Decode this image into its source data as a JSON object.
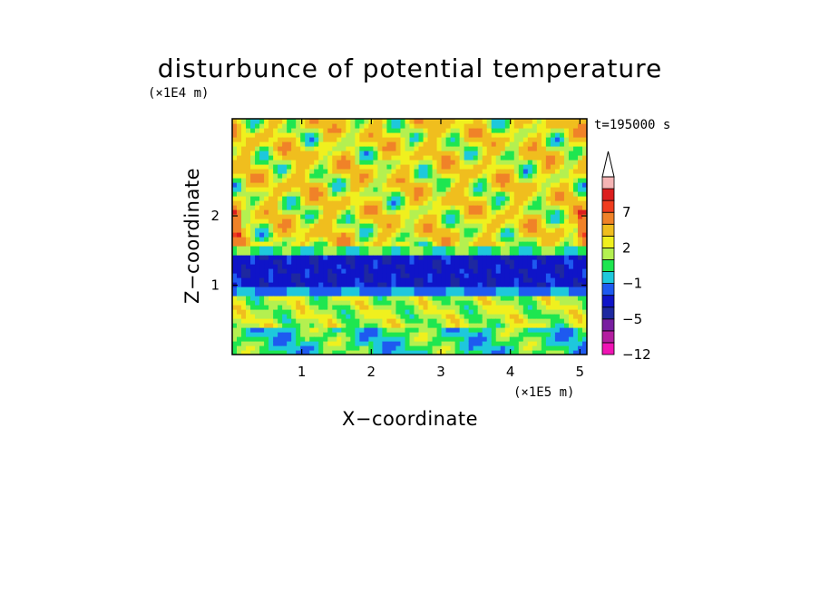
{
  "chart_data": {
    "type": "heatmap",
    "title": "disturbunce of potential temperature",
    "time_label": "t=195000 s",
    "xlabel": "X−coordinate",
    "ylabel": "Z−coordinate",
    "x_unit": "(×1E5 m)",
    "y_unit": "(×1E4 m)",
    "xlim": [
      0,
      5.1
    ],
    "ylim": [
      0,
      3.4
    ],
    "x_ticks": [
      1,
      2,
      3,
      4,
      5
    ],
    "x_tick_labels": [
      "1",
      "2",
      "3",
      "4",
      "5"
    ],
    "y_ticks": [
      1,
      2
    ],
    "y_tick_labels": [
      "1",
      "2"
    ],
    "colorbar": {
      "levels": [
        -12,
        -10,
        -8,
        -5,
        -4,
        -3,
        -1,
        0,
        1,
        2,
        3,
        5,
        7,
        8,
        10
      ],
      "colors": [
        "#f014b4",
        "#b41ea0",
        "#781ea0",
        "#1e28a0",
        "#0f14c8",
        "#1e5af0",
        "#1ec8dc",
        "#1ee650",
        "#b4f050",
        "#f0f01e",
        "#f0be1e",
        "#f08228",
        "#f03c1e",
        "#dc1e1e",
        "#f5b4b4"
      ],
      "tick_values": [
        -12,
        -5,
        -1,
        2,
        7
      ],
      "tick_labels": [
        "−12",
        "−5",
        "−1",
        "2",
        "7"
      ],
      "extend": "max"
    },
    "field_description_bands": [
      {
        "z_range": [
          0,
          0.4
        ],
        "typical_value": 0.5
      },
      {
        "z_range": [
          0.4,
          0.9
        ],
        "typical_value": 1.5
      },
      {
        "z_range": [
          0.9,
          1.5
        ],
        "typical_value": -3.5
      },
      {
        "z_range": [
          1.5,
          2.8
        ],
        "typical_value": 2.5
      },
      {
        "z_range": [
          2.8,
          3.4
        ],
        "typical_value": 1.5
      }
    ]
  }
}
